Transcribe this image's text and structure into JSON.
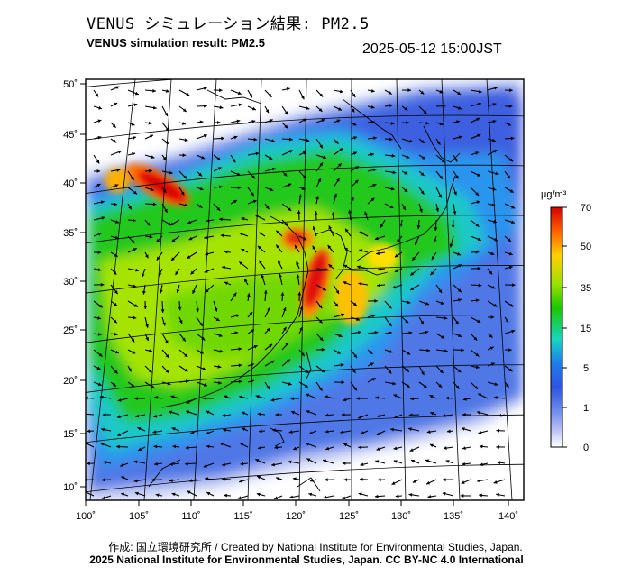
{
  "header": {
    "title_jp": "VENUS シミュレーション結果: PM2.5",
    "title_en": "VENUS simulation result: PM2.5",
    "timestamp": "2025-05-12 15:00JST"
  },
  "map": {
    "lon_ticks": [
      "100˚",
      "105˚",
      "110˚",
      "115˚",
      "120˚",
      "125˚",
      "130˚",
      "135˚",
      "140˚"
    ],
    "lat_ticks": [
      "50˚",
      "45˚",
      "40˚",
      "35˚",
      "30˚",
      "25˚",
      "20˚",
      "15˚",
      "10˚"
    ],
    "lon_range": [
      100,
      141
    ],
    "lat_range": [
      9,
      51
    ]
  },
  "colorbar": {
    "unit": "μg/m³",
    "labels": [
      "70",
      "50",
      "35",
      "15",
      "5",
      "1",
      "0"
    ],
    "colors": [
      "#d60000",
      "#ff6000",
      "#ffd000",
      "#9be000",
      "#18c800",
      "#17d6c0",
      "#1f7dea",
      "#2d55e0",
      "#6f8bec",
      "#b9c3f4",
      "#ffffff"
    ]
  },
  "footer": {
    "credit": "作成: 国立環境研究所 / Created by National Institute for Environmental Studies, Japan.",
    "copyright": "2025 National Institute for Environmental Studies, Japan. CC BY-NC 4.0 International"
  }
}
